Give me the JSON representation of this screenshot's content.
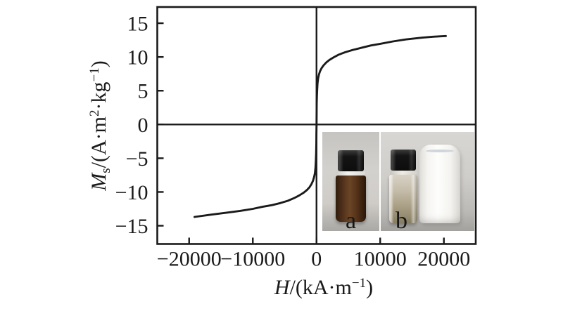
{
  "figure": {
    "background": "#ffffff",
    "ink_color": "#1a1a1a"
  },
  "chart_data": {
    "type": "line",
    "title": "",
    "xlabel_text": "H/(kA·m−1)",
    "ylabel_text": "Ms/(A·m2·kg−1)",
    "xlabel_segments": [
      {
        "t": "H",
        "s": "i"
      },
      {
        "t": "/(kA·m",
        "s": ""
      },
      {
        "t": "−1",
        "s": "sup"
      },
      {
        "t": ")",
        "s": ""
      }
    ],
    "ylabel_segments": [
      {
        "t": "M",
        "s": "i"
      },
      {
        "t": "s",
        "s": "sub"
      },
      {
        "t": "/(A·m",
        "s": ""
      },
      {
        "t": "2",
        "s": "sup"
      },
      {
        "t": "·kg",
        "s": ""
      },
      {
        "t": "−1",
        "s": "sup"
      },
      {
        "t": ")",
        "s": ""
      }
    ],
    "xlim": [
      -25000,
      25000
    ],
    "ylim": [
      -17.7,
      17.4
    ],
    "grid": false,
    "legend": "none",
    "zero_axes": true,
    "x_ticks": [
      {
        "value": -20000,
        "label": "−20000"
      },
      {
        "value": -10000,
        "label": "−10000"
      },
      {
        "value": 0,
        "label": "0"
      },
      {
        "value": 10000,
        "label": "10000"
      },
      {
        "value": 20000,
        "label": "20000"
      }
    ],
    "y_ticks": [
      {
        "value": 15,
        "label": "15"
      },
      {
        "value": 10,
        "label": "10"
      },
      {
        "value": 5,
        "label": "5"
      },
      {
        "value": 0,
        "label": "0"
      },
      {
        "value": -5,
        "label": "−5"
      },
      {
        "value": -10,
        "label": "−10"
      },
      {
        "value": -15,
        "label": "−15"
      }
    ],
    "series": [
      {
        "name": "magnetization-vs-field",
        "color": "#1a1a1a",
        "points": [
          [
            -19150,
            -13.7
          ],
          [
            -16500,
            -13.35
          ],
          [
            -14000,
            -13.05
          ],
          [
            -12000,
            -12.8
          ],
          [
            -10000,
            -12.5
          ],
          [
            -8500,
            -12.2
          ],
          [
            -7000,
            -11.95
          ],
          [
            -5700,
            -11.65
          ],
          [
            -4500,
            -11.3
          ],
          [
            -3500,
            -10.9
          ],
          [
            -2700,
            -10.5
          ],
          [
            -2000,
            -10.1
          ],
          [
            -1500,
            -9.7
          ],
          [
            -1100,
            -9.3
          ],
          [
            -800,
            -8.85
          ],
          [
            -560,
            -8.35
          ],
          [
            -380,
            -7.8
          ],
          [
            -250,
            -7.2
          ],
          [
            -160,
            -6.4
          ],
          [
            -100,
            -5.4
          ],
          [
            -60,
            -4.3
          ],
          [
            -30,
            -2.9
          ],
          [
            -12,
            -1.4
          ],
          [
            0,
            0
          ],
          [
            14,
            1.5
          ],
          [
            32,
            3.0
          ],
          [
            60,
            4.2
          ],
          [
            100,
            5.2
          ],
          [
            160,
            6.1
          ],
          [
            250,
            6.8
          ],
          [
            380,
            7.4
          ],
          [
            560,
            7.9
          ],
          [
            800,
            8.35
          ],
          [
            1100,
            8.75
          ],
          [
            1500,
            9.15
          ],
          [
            2000,
            9.55
          ],
          [
            2700,
            9.95
          ],
          [
            3500,
            10.35
          ],
          [
            4500,
            10.7
          ],
          [
            5700,
            11.05
          ],
          [
            7000,
            11.35
          ],
          [
            8500,
            11.7
          ],
          [
            10000,
            11.95
          ],
          [
            12000,
            12.3
          ],
          [
            14000,
            12.6
          ],
          [
            16500,
            12.85
          ],
          [
            18300,
            13.0
          ],
          [
            20300,
            13.1
          ]
        ]
      }
    ]
  },
  "inset": {
    "photos": [
      {
        "label": "a",
        "cap_color": "#141414",
        "liquid_color": "#6b4526",
        "background_color": "#cfccc8"
      },
      {
        "label": "b",
        "cap_color": "#141414",
        "liquid_color": "#b0a68d",
        "cloth_color": "#fdfdfb",
        "background_color": "#cfccc8"
      }
    ]
  }
}
